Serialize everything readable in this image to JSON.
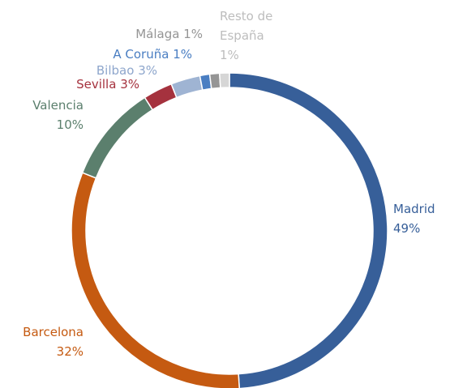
{
  "chart_data": {
    "type": "donut",
    "categories": [
      "Madrid",
      "Barcelona",
      "Valencia",
      "Sevilla",
      "Bilbao",
      "A Coruña",
      "Málaga",
      "Resto de España"
    ],
    "values": [
      49,
      32,
      10,
      3,
      3,
      1,
      1,
      1
    ],
    "value_labels": [
      "49%",
      "32%",
      "10%",
      "3%",
      "3%",
      "1%",
      "1%",
      "1%"
    ],
    "colors": [
      "#375f99",
      "#c55a11",
      "#5b7f6d",
      "#a5323e",
      "#9fb4d3",
      "#4a7ec2",
      "#959595",
      "#d6d6d6"
    ]
  }
}
